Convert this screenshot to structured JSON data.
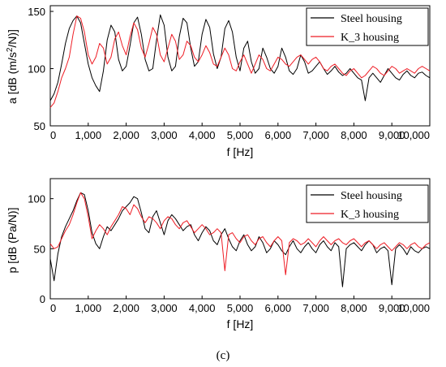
{
  "figure_label": "(c)",
  "colors": {
    "steel": "#000000",
    "k3": "#ee1c24",
    "axis": "#000000"
  },
  "chart_data": [
    {
      "type": "line",
      "xlabel": "f [Hz]",
      "ylabel_parts": [
        "a [dB (m/s",
        "2",
        "/N)]"
      ],
      "xlim": [
        0,
        10000
      ],
      "ylim": [
        50,
        155
      ],
      "xticks": [
        0,
        1000,
        2000,
        3000,
        4000,
        5000,
        6000,
        7000,
        8000,
        9000,
        10000
      ],
      "xtick_labels": [
        "0",
        "1,000",
        "2,000",
        "3,000",
        "4,000",
        "5,000",
        "6,000",
        "7,000",
        "8,000",
        "9,000",
        "10,000"
      ],
      "yticks": [
        50,
        100,
        150
      ],
      "ytick_labels": [
        "50",
        "100",
        "150"
      ],
      "grid": false,
      "legend_position": "top-right",
      "series": [
        {
          "name": "Steel housing",
          "x": [
            0,
            100,
            200,
            300,
            400,
            500,
            600,
            700,
            800,
            900,
            1000,
            1100,
            1200,
            1300,
            1400,
            1500,
            1600,
            1700,
            1800,
            1900,
            2000,
            2100,
            2200,
            2300,
            2400,
            2500,
            2600,
            2700,
            2800,
            2900,
            3000,
            3100,
            3200,
            3300,
            3400,
            3500,
            3600,
            3700,
            3800,
            3900,
            4000,
            4100,
            4200,
            4300,
            4400,
            4500,
            4600,
            4700,
            4800,
            4900,
            5000,
            5100,
            5200,
            5300,
            5400,
            5500,
            5600,
            5700,
            5800,
            5900,
            6000,
            6100,
            6200,
            6300,
            6400,
            6500,
            6600,
            6700,
            6800,
            6900,
            7000,
            7100,
            7200,
            7300,
            7400,
            7500,
            7600,
            7700,
            7800,
            7900,
            8000,
            8100,
            8200,
            8300,
            8400,
            8500,
            8600,
            8700,
            8800,
            8900,
            9000,
            9100,
            9200,
            9300,
            9400,
            9500,
            9600,
            9700,
            9800,
            9900,
            10000
          ],
          "y": [
            72,
            78,
            88,
            104,
            122,
            135,
            142,
            146,
            140,
            122,
            104,
            92,
            85,
            80,
            98,
            125,
            138,
            132,
            108,
            98,
            102,
            120,
            140,
            145,
            130,
            108,
            98,
            100,
            125,
            147,
            138,
            110,
            98,
            102,
            128,
            144,
            140,
            118,
            102,
            106,
            130,
            143,
            136,
            113,
            100,
            110,
            135,
            142,
            132,
            110,
            98,
            118,
            124,
            106,
            96,
            100,
            118,
            110,
            100,
            96,
            102,
            118,
            110,
            98,
            95,
            100,
            112,
            106,
            96,
            98,
            102,
            106,
            100,
            95,
            98,
            102,
            97,
            94,
            96,
            100,
            96,
            92,
            90,
            72,
            92,
            96,
            92,
            88,
            94,
            100,
            96,
            92,
            90,
            95,
            98,
            94,
            92,
            96,
            97,
            94,
            92
          ]
        },
        {
          "name": "K_3 housing",
          "x": [
            0,
            100,
            200,
            300,
            400,
            500,
            600,
            700,
            800,
            900,
            1000,
            1100,
            1200,
            1300,
            1400,
            1500,
            1600,
            1700,
            1800,
            1900,
            2000,
            2100,
            2200,
            2300,
            2400,
            2500,
            2600,
            2700,
            2800,
            2900,
            3000,
            3100,
            3200,
            3300,
            3400,
            3500,
            3600,
            3700,
            3800,
            3900,
            4000,
            4100,
            4200,
            4300,
            4400,
            4500,
            4600,
            4700,
            4800,
            4900,
            5000,
            5100,
            5200,
            5300,
            5400,
            5500,
            5600,
            5700,
            5800,
            5900,
            6000,
            6100,
            6200,
            6300,
            6400,
            6500,
            6600,
            6700,
            6800,
            6900,
            7000,
            7100,
            7200,
            7300,
            7400,
            7500,
            7600,
            7700,
            7800,
            7900,
            8000,
            8100,
            8200,
            8300,
            8400,
            8500,
            8600,
            8700,
            8800,
            8900,
            9000,
            9100,
            9200,
            9300,
            9400,
            9500,
            9600,
            9700,
            9800,
            9900,
            10000
          ],
          "y": [
            66,
            70,
            80,
            92,
            100,
            110,
            130,
            146,
            144,
            132,
            112,
            104,
            110,
            122,
            118,
            104,
            110,
            126,
            132,
            120,
            112,
            128,
            140,
            134,
            118,
            110,
            122,
            136,
            130,
            112,
            106,
            118,
            130,
            124,
            108,
            112,
            124,
            120,
            110,
            106,
            112,
            120,
            114,
            104,
            102,
            110,
            118,
            112,
            100,
            98,
            106,
            112,
            104,
            96,
            104,
            112,
            108,
            100,
            98,
            104,
            110,
            108,
            104,
            102,
            106,
            110,
            112,
            108,
            104,
            108,
            110,
            106,
            100,
            98,
            102,
            104,
            100,
            96,
            94,
            98,
            100,
            96,
            92,
            94,
            98,
            102,
            100,
            96,
            94,
            98,
            102,
            100,
            96,
            98,
            100,
            98,
            96,
            100,
            102,
            100,
            98
          ]
        }
      ]
    },
    {
      "type": "line",
      "xlabel": "f [Hz]",
      "ylabel_parts": [
        "p [dB (Pa/N)]"
      ],
      "xlim": [
        0,
        10000
      ],
      "ylim": [
        0,
        120
      ],
      "xticks": [
        0,
        1000,
        2000,
        3000,
        4000,
        5000,
        6000,
        7000,
        8000,
        9000,
        10000
      ],
      "xtick_labels": [
        "0",
        "1,000",
        "2,000",
        "3,000",
        "4,000",
        "5,000",
        "6,000",
        "7,000",
        "8,000",
        "9,000",
        "10,000"
      ],
      "yticks": [
        0,
        50,
        100
      ],
      "ytick_labels": [
        "0",
        "50",
        "100"
      ],
      "grid": false,
      "legend_position": "top-right",
      "series": [
        {
          "name": "Steel housing",
          "x": [
            0,
            100,
            200,
            300,
            400,
            500,
            600,
            700,
            800,
            900,
            1000,
            1100,
            1200,
            1300,
            1400,
            1500,
            1600,
            1700,
            1800,
            1900,
            2000,
            2100,
            2200,
            2300,
            2400,
            2500,
            2600,
            2700,
            2800,
            2900,
            3000,
            3100,
            3200,
            3300,
            3400,
            3500,
            3600,
            3700,
            3800,
            3900,
            4000,
            4100,
            4200,
            4300,
            4400,
            4500,
            4600,
            4700,
            4800,
            4900,
            5000,
            5100,
            5200,
            5300,
            5400,
            5500,
            5600,
            5700,
            5800,
            5900,
            6000,
            6100,
            6200,
            6300,
            6400,
            6500,
            6600,
            6700,
            6800,
            6900,
            7000,
            7100,
            7200,
            7300,
            7400,
            7500,
            7600,
            7700,
            7800,
            7900,
            8000,
            8100,
            8200,
            8300,
            8400,
            8500,
            8600,
            8700,
            8800,
            8900,
            9000,
            9100,
            9200,
            9300,
            9400,
            9500,
            9600,
            9700,
            9800,
            9900,
            10000
          ],
          "y": [
            40,
            18,
            45,
            62,
            72,
            80,
            88,
            98,
            106,
            104,
            88,
            66,
            55,
            50,
            62,
            72,
            68,
            74,
            80,
            88,
            92,
            96,
            102,
            100,
            86,
            70,
            66,
            82,
            88,
            76,
            64,
            78,
            84,
            80,
            74,
            68,
            72,
            74,
            64,
            58,
            66,
            72,
            68,
            58,
            54,
            64,
            70,
            60,
            52,
            48,
            58,
            64,
            54,
            48,
            52,
            62,
            56,
            46,
            50,
            58,
            54,
            48,
            44,
            52,
            58,
            50,
            46,
            52,
            56,
            50,
            46,
            54,
            58,
            52,
            48,
            56,
            52,
            12,
            50,
            54,
            56,
            52,
            48,
            54,
            58,
            54,
            46,
            50,
            52,
            48,
            14,
            50,
            54,
            50,
            44,
            52,
            48,
            46,
            50,
            52,
            50
          ]
        },
        {
          "name": "K_3 housing",
          "x": [
            0,
            100,
            200,
            300,
            400,
            500,
            600,
            700,
            800,
            900,
            1000,
            1100,
            1200,
            1300,
            1400,
            1500,
            1600,
            1700,
            1800,
            1900,
            2000,
            2100,
            2200,
            2300,
            2400,
            2500,
            2600,
            2700,
            2800,
            2900,
            3000,
            3100,
            3200,
            3300,
            3400,
            3500,
            3600,
            3700,
            3800,
            3900,
            4000,
            4100,
            4200,
            4300,
            4400,
            4500,
            4600,
            4700,
            4800,
            4900,
            5000,
            5100,
            5200,
            5300,
            5400,
            5500,
            5600,
            5700,
            5800,
            5900,
            6000,
            6100,
            6200,
            6300,
            6400,
            6500,
            6600,
            6700,
            6800,
            6900,
            7000,
            7100,
            7200,
            7300,
            7400,
            7500,
            7600,
            7700,
            7800,
            7900,
            8000,
            8100,
            8200,
            8300,
            8400,
            8500,
            8600,
            8700,
            8800,
            8900,
            9000,
            9100,
            9200,
            9300,
            9400,
            9500,
            9600,
            9700,
            9800,
            9900,
            10000
          ],
          "y": [
            55,
            50,
            52,
            60,
            68,
            74,
            84,
            96,
            106,
            100,
            82,
            60,
            68,
            74,
            70,
            64,
            72,
            78,
            84,
            92,
            90,
            84,
            94,
            90,
            82,
            76,
            82,
            80,
            76,
            70,
            78,
            82,
            80,
            74,
            70,
            76,
            78,
            72,
            66,
            70,
            74,
            70,
            64,
            66,
            70,
            66,
            28,
            64,
            66,
            60,
            56,
            62,
            64,
            58,
            54,
            60,
            62,
            56,
            52,
            58,
            62,
            58,
            24,
            56,
            60,
            58,
            54,
            56,
            60,
            56,
            52,
            58,
            62,
            58,
            54,
            58,
            60,
            56,
            54,
            58,
            60,
            56,
            52,
            56,
            58,
            54,
            50,
            54,
            56,
            52,
            48,
            52,
            56,
            54,
            50,
            54,
            56,
            52,
            50,
            54,
            56
          ]
        }
      ]
    }
  ]
}
